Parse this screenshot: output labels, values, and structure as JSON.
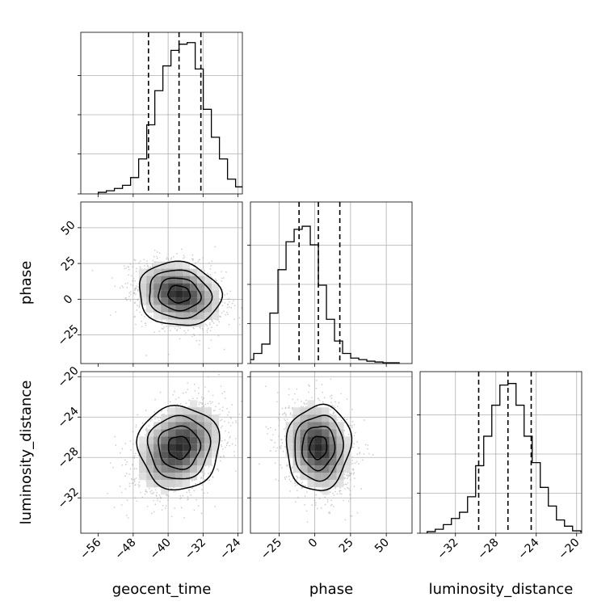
{
  "chart_data": {
    "type": "corner",
    "parameters": [
      {
        "name": "geocent_time",
        "label": "geocent_time",
        "range": [
          -60,
          -23
        ],
        "ticks": [
          -56,
          -48,
          -40,
          -32,
          -24
        ],
        "quantiles": [
          -44.5,
          -37.5,
          -32.5
        ],
        "grid": [
          -48,
          -40,
          -32,
          -24
        ],
        "dx": 1.85,
        "hist": [
          0.005,
          0.015,
          0.03,
          0.05,
          0.1,
          0.22,
          0.44,
          0.66,
          0.82,
          0.92,
          0.96,
          0.97,
          0.8,
          0.54,
          0.36,
          0.22,
          0.09,
          0.04,
          0.015,
          0.005
        ]
      },
      {
        "name": "phase",
        "label": "phase",
        "range": [
          -45,
          68
        ],
        "ticks": [
          -25,
          0,
          25,
          50
        ],
        "quantiles": [
          -11,
          2.5,
          17.5
        ],
        "grid": [
          -25,
          0,
          25,
          50
        ],
        "dx": 5.65,
        "hist": [
          0.005,
          0.02,
          0.06,
          0.12,
          0.32,
          0.6,
          0.78,
          0.86,
          0.88,
          0.76,
          0.5,
          0.28,
          0.14,
          0.06,
          0.03,
          0.02,
          0.01,
          0.005,
          0.0,
          0.0
        ]
      },
      {
        "name": "luminosity_distance",
        "label": "luminosity_distance",
        "range": [
          -35.5,
          -19.5
        ],
        "ticks": [
          -32,
          -28,
          -24,
          -20
        ],
        "quantiles": [
          -29.7,
          -26.8,
          -24.5
        ],
        "grid": [
          -32,
          -28,
          -24,
          -20
        ],
        "dx": 0.8,
        "hist": [
          0.005,
          0.02,
          0.05,
          0.09,
          0.13,
          0.23,
          0.43,
          0.62,
          0.82,
          0.95,
          0.96,
          0.82,
          0.62,
          0.45,
          0.29,
          0.17,
          0.08,
          0.04,
          0.01,
          0.005
        ]
      }
    ],
    "yaxis_labels": {
      "phase": {
        "ticks": [
          -25,
          0,
          25,
          50
        ]
      },
      "luminosity_distance": {
        "ticks": [
          -32,
          -28,
          -24,
          -20
        ]
      }
    },
    "pairs": [
      {
        "x": "geocent_time",
        "y": "phase",
        "center": [
          -37.5,
          3.5
        ],
        "sd": [
          4.7,
          11.0
        ],
        "rho": -0.25
      },
      {
        "x": "geocent_time",
        "y": "luminosity_distance",
        "center": [
          -37.5,
          -27.0
        ],
        "sd": [
          4.7,
          2.1
        ],
        "rho": 0.35
      },
      {
        "x": "phase",
        "y": "luminosity_distance",
        "center": [
          2.5,
          -27.0
        ],
        "sd": [
          11.0,
          2.1
        ],
        "rho": -0.2
      }
    ],
    "grid": true,
    "quantile_lines": "dashed"
  }
}
